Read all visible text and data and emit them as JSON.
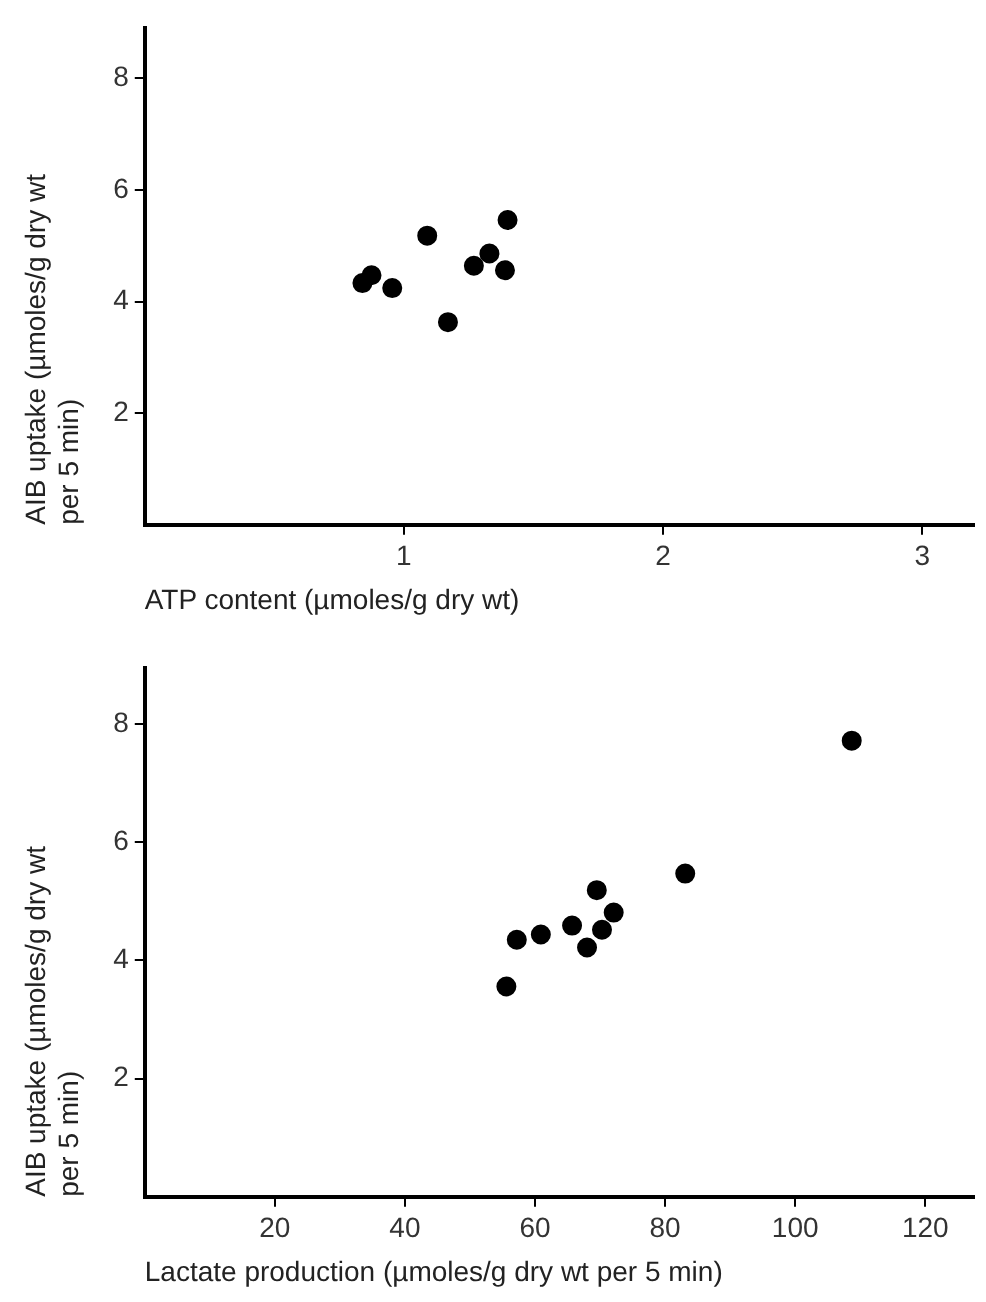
{
  "chart_data": [
    {
      "type": "scatter",
      "xlabel": "ATP content (µmoles/g dry wt)",
      "ylabel": "AIB uptake (µmoles/g dry wt per 5 min)",
      "marker": "circle",
      "grid": false,
      "legend": false,
      "xlim": [
        0,
        3.2
      ],
      "xticks": [
        1,
        2,
        3
      ],
      "ylim": [
        0,
        8.9
      ],
      "yticks": [
        2,
        4,
        6,
        8
      ],
      "series": [
        {
          "color": "#000000",
          "x": [
            0.84,
            0.875,
            0.955,
            1.09,
            1.17,
            1.27,
            1.33,
            1.39,
            1.4
          ],
          "values": [
            4.33,
            4.47,
            4.24,
            5.18,
            3.63,
            4.64,
            4.86,
            4.56,
            5.46
          ]
        }
      ]
    },
    {
      "type": "scatter",
      "xlabel": "Lactate production (µmoles/g dry wt per 5 min)",
      "ylabel": "AIB uptake (µmoles/g dry wt per 5 min)",
      "marker": "circle",
      "grid": false,
      "legend": false,
      "xlim": [
        0,
        127.5
      ],
      "xticks": [
        20,
        40,
        60,
        80,
        100,
        120
      ],
      "ylim": [
        0,
        8.95
      ],
      "yticks": [
        2,
        4,
        6,
        8
      ],
      "series": [
        {
          "color": "#000000",
          "x": [
            55.6,
            57.2,
            60.9,
            65.7,
            68.0,
            69.5,
            70.3,
            72.1,
            83.1,
            108.7
          ],
          "values": [
            3.56,
            4.35,
            4.44,
            4.59,
            4.22,
            5.19,
            4.52,
            4.81,
            5.47,
            7.72
          ]
        }
      ]
    }
  ]
}
